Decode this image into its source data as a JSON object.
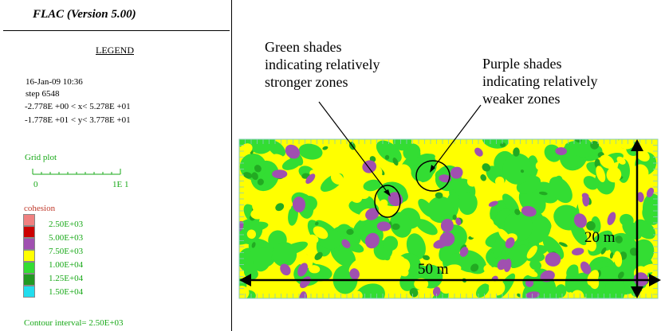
{
  "header": {
    "title": "FLAC (Version 5.00)"
  },
  "legend": {
    "heading": "LEGEND",
    "date": "16-Jan-09  10:36",
    "step": "step     6548",
    "x_range": "-2.778E +00 < x<  5.278E +01",
    "y_range": "-1.778E +01 < y<  3.778E +01",
    "grid_plot": {
      "title": "Grid plot",
      "label_start": "0",
      "label_end": "1E  1"
    },
    "cohesion": {
      "title": "cohesion",
      "items": [
        {
          "label": "2.50E+03",
          "color": "#f08080"
        },
        {
          "label": "5.00E+03",
          "color": "#cc0000"
        },
        {
          "label": "7.50E+03",
          "color": "#a050b0"
        },
        {
          "label": "1.00E+04",
          "color": "#ffff00"
        },
        {
          "label": "1.25E+04",
          "color": "#33dd33"
        },
        {
          "label": "1.50E+04",
          "color": "#229922"
        },
        {
          "label": "",
          "color": "#22ddee"
        }
      ]
    },
    "contour_interval": "Contour interval=  2.50E+03"
  },
  "annotations": {
    "green_note": [
      "Green shades",
      "indicating relatively",
      "stronger zones"
    ],
    "purple_note": [
      "Purple shades",
      "indicating relatively",
      "weaker zones"
    ],
    "width_label": "50 m",
    "height_label": "20 m"
  },
  "colors": {
    "strong": "#33dd33",
    "strong_dark": "#22aa22",
    "mid": "#ffff00",
    "weak": "#a050b0",
    "grid": "#88ccbb"
  }
}
